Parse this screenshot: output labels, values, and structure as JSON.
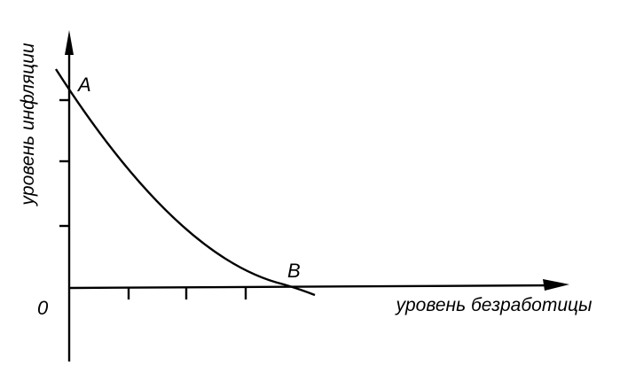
{
  "diagram": {
    "y_axis_label": "уровень инфляции",
    "x_axis_label": "уровень безработицы",
    "origin_label": "0",
    "points": [
      {
        "label": "A"
      },
      {
        "label": "B"
      }
    ]
  }
}
